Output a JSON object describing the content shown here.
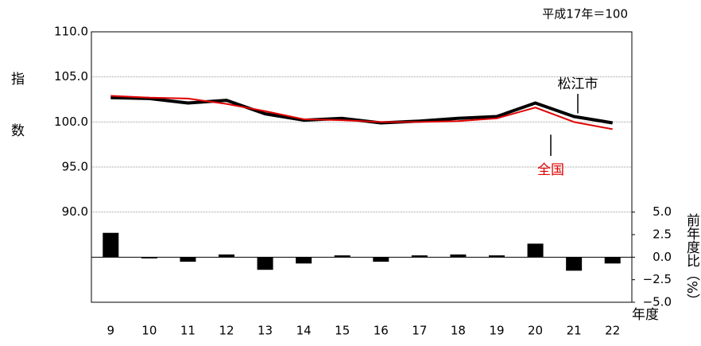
{
  "chart_data": {
    "type": "line",
    "note": "平成17年＝100",
    "y_label": "指数",
    "y2_label": "前年度比（%）",
    "x_label": "年度",
    "categories": [
      "9",
      "10",
      "11",
      "12",
      "13",
      "14",
      "15",
      "16",
      "17",
      "18",
      "19",
      "20",
      "21",
      "22"
    ],
    "series": [
      {
        "name": "松江市",
        "color": "#000000",
        "values": [
          102.7,
          102.6,
          102.1,
          102.4,
          100.9,
          100.2,
          100.4,
          99.9,
          100.1,
          100.4,
          100.6,
          102.1,
          100.6,
          99.9
        ]
      },
      {
        "name": "全国",
        "color": "#e00000",
        "values": [
          102.9,
          102.7,
          102.6,
          102.0,
          101.2,
          100.3,
          100.2,
          100.0,
          100.0,
          100.1,
          100.4,
          101.6,
          100.0,
          99.2
        ]
      },
      {
        "type": "bar",
        "axis": "y2",
        "color": "#000000",
        "values": [
          2.7,
          -0.1,
          -0.5,
          0.3,
          -1.4,
          -0.7,
          0.2,
          -0.5,
          0.2,
          0.3,
          0.2,
          1.5,
          -1.5,
          -0.7
        ]
      }
    ],
    "ylim": [
      80,
      110
    ],
    "yticks": [
      {
        "value": 90,
        "label": "90.0"
      },
      {
        "value": 95,
        "label": "95.0"
      },
      {
        "value": 100,
        "label": "100.0"
      },
      {
        "value": 105,
        "label": "105.0"
      },
      {
        "value": 110,
        "label": "110.0"
      }
    ],
    "y2lim": [
      -5,
      25
    ],
    "y2ticks": [
      {
        "value": -5,
        "label": "−5.0"
      },
      {
        "value": -2.5,
        "label": "−2.5"
      },
      {
        "value": 0,
        "label": "0.0"
      },
      {
        "value": 2.5,
        "label": "2.5"
      },
      {
        "value": 5,
        "label": "5.0"
      }
    ],
    "grid": true
  }
}
